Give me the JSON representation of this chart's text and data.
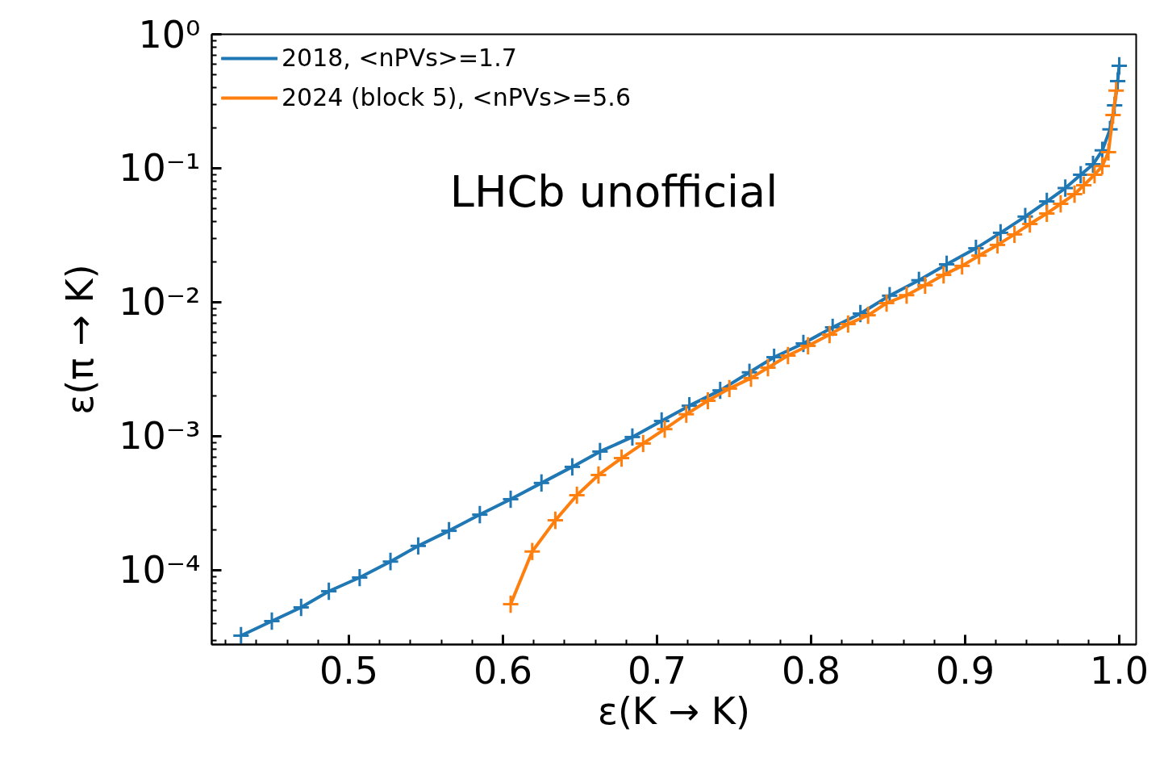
{
  "chart_data": {
    "type": "line",
    "xlabel": "ε(K → K)",
    "ylabel": "ε(π → K)",
    "annotations": [
      "LHCb unofficial"
    ],
    "log": "y",
    "grid": false,
    "legend": "top left",
    "line_style": "solid",
    "xlim": [
      0.411,
      1.011
    ],
    "xticks": [
      0.5,
      0.6,
      0.7,
      0.8,
      0.9,
      {
        "value": 1.0,
        "label": "1.0"
      }
    ],
    "ylim": [
      2.79e-05,
      1
    ],
    "yticks": [
      {
        "value": 0.0001,
        "label": "10⁻⁴"
      },
      {
        "value": 0.001,
        "label": "10⁻³"
      },
      {
        "value": 0.01,
        "label": "10⁻²"
      },
      {
        "value": 0.1,
        "label": "10⁻¹"
      },
      {
        "value": 1,
        "label": "10⁰"
      }
    ],
    "series": [
      {
        "name": "2018, <nPVs>=1.7",
        "color": "#1f77b4",
        "x": [
          0.43,
          0.45,
          0.469,
          0.487,
          0.507,
          0.527,
          0.545,
          0.565,
          0.585,
          0.605,
          0.625,
          0.645,
          0.663,
          0.684,
          0.703,
          0.721,
          0.741,
          0.76,
          0.776,
          0.795,
          0.814,
          0.832,
          0.851,
          0.87,
          0.888,
          0.907,
          0.923,
          0.939,
          0.953,
          0.965,
          0.975,
          0.983,
          0.989,
          0.994,
          0.997,
          0.999,
          1.0
        ],
        "values": [
          3.25e-05,
          4.17e-05,
          5.28e-05,
          6.97e-05,
          8.82e-05,
          0.000116,
          0.000152,
          0.000197,
          0.00026,
          0.000339,
          0.000448,
          0.000591,
          0.000769,
          0.000987,
          0.0013,
          0.00169,
          0.0022,
          0.003,
          0.00389,
          0.00493,
          0.0065,
          0.00824,
          0.0112,
          0.0146,
          0.0192,
          0.0253,
          0.033,
          0.0436,
          0.0566,
          0.0711,
          0.0895,
          0.107,
          0.136,
          0.195,
          0.295,
          0.447,
          0.582
        ],
        "xerrors": [
          0.005,
          0.005,
          0.005,
          0.005,
          0.005,
          0.005,
          0.005,
          0.005,
          0.005,
          0.005,
          0.005,
          0.005,
          0.005,
          0.005,
          0.005,
          0.005,
          0.005,
          0.005,
          0.005,
          0.005,
          0.005,
          0.005,
          0.005,
          0.005,
          0.005,
          0.005,
          0.005,
          0.005,
          0.005,
          0.005,
          0.005,
          0.005,
          0.005,
          0.005,
          0.005,
          0.005,
          0.005
        ],
        "errors": [
          [
            2.8e-05,
            3.77e-05
          ],
          [
            3.59e-05,
            4.84e-05
          ],
          [
            4.55e-05,
            6.12e-05
          ],
          [
            6.01e-05,
            8.09e-05
          ],
          [
            7.6e-05,
            0.000102
          ],
          [
            0.0001,
            0.000135
          ],
          [
            0.000131,
            0.000176
          ],
          [
            0.00017,
            0.000229
          ],
          [
            0.000224,
            0.000302
          ],
          [
            0.000292,
            0.000393
          ],
          [
            0.000386,
            0.00052
          ],
          [
            0.000509,
            0.000686
          ],
          [
            0.000663,
            0.000892
          ],
          [
            0.000851,
            0.001145
          ],
          [
            0.00112,
            0.00151
          ],
          [
            0.00146,
            0.00196
          ],
          [
            0.0019,
            0.00255
          ],
          [
            0.00259,
            0.00348
          ],
          [
            0.00335,
            0.00451
          ],
          [
            0.00425,
            0.00572
          ],
          [
            0.0056,
            0.00754
          ],
          [
            0.0071,
            0.00956
          ],
          [
            0.00966,
            0.013
          ],
          [
            0.0126,
            0.0169
          ],
          [
            0.0166,
            0.0223
          ],
          [
            0.0218,
            0.0293
          ],
          [
            0.0284,
            0.0383
          ],
          [
            0.0376,
            0.0506
          ],
          [
            0.0488,
            0.0657
          ],
          [
            0.0613,
            0.0825
          ],
          [
            0.0772,
            0.104
          ],
          [
            0.0922,
            0.124
          ],
          [
            0.117,
            0.158
          ],
          [
            0.168,
            0.226
          ],
          [
            0.254,
            0.342
          ],
          [
            0.385,
            0.519
          ],
          [
            0.502,
            0.675
          ]
        ]
      },
      {
        "name": "2024 (block 5), <nPVs>=5.6",
        "color": "#ff7f0e",
        "x": [
          0.605,
          0.619,
          0.634,
          0.648,
          0.662,
          0.677,
          0.691,
          0.705,
          0.719,
          0.733,
          0.747,
          0.761,
          0.772,
          0.785,
          0.798,
          0.812,
          0.824,
          0.837,
          0.849,
          0.862,
          0.874,
          0.886,
          0.898,
          0.909,
          0.921,
          0.932,
          0.942,
          0.953,
          0.962,
          0.971,
          0.977,
          0.984,
          0.989,
          0.993,
          0.996,
          0.998
        ],
        "values": [
          5.58e-05,
          0.000138,
          0.000236,
          0.000363,
          0.000514,
          0.000687,
          0.000883,
          0.00113,
          0.00146,
          0.00184,
          0.00227,
          0.00272,
          0.00325,
          0.004,
          0.00473,
          0.00574,
          0.00688,
          0.008,
          0.00986,
          0.0113,
          0.0134,
          0.016,
          0.0187,
          0.0223,
          0.0268,
          0.0321,
          0.0384,
          0.046,
          0.0543,
          0.0641,
          0.0747,
          0.0895,
          0.104,
          0.132,
          0.25,
          0.38
        ],
        "xerrors": [
          0.005,
          0.005,
          0.005,
          0.005,
          0.005,
          0.005,
          0.005,
          0.005,
          0.005,
          0.005,
          0.005,
          0.005,
          0.005,
          0.005,
          0.005,
          0.005,
          0.005,
          0.005,
          0.005,
          0.005,
          0.005,
          0.005,
          0.005,
          0.005,
          0.005,
          0.005,
          0.005,
          0.005,
          0.005,
          0.005,
          0.005,
          0.005,
          0.005,
          0.005,
          0.005,
          0.005
        ],
        "errors": [
          [
            4.81e-05,
            6.47e-05
          ],
          [
            0.000119,
            0.00016
          ],
          [
            0.000203,
            0.000274
          ],
          [
            0.000313,
            0.000421
          ],
          [
            0.000443,
            0.000596
          ],
          [
            0.000592,
            0.000797
          ],
          [
            0.000761,
            0.001024
          ],
          [
            0.000974,
            0.00131
          ],
          [
            0.00126,
            0.00169
          ],
          [
            0.00159,
            0.00213
          ],
          [
            0.00196,
            0.00263
          ],
          [
            0.00234,
            0.00316
          ],
          [
            0.0028,
            0.00377
          ],
          [
            0.00345,
            0.00464
          ],
          [
            0.00408,
            0.00549
          ],
          [
            0.00495,
            0.00666
          ],
          [
            0.00593,
            0.00798
          ],
          [
            0.0069,
            0.00928
          ],
          [
            0.0085,
            0.01144
          ],
          [
            0.00974,
            0.0131
          ],
          [
            0.01155,
            0.0155
          ],
          [
            0.0138,
            0.0186
          ],
          [
            0.0161,
            0.0217
          ],
          [
            0.0192,
            0.0259
          ],
          [
            0.0231,
            0.0311
          ],
          [
            0.0277,
            0.0372
          ],
          [
            0.0331,
            0.0445
          ],
          [
            0.0397,
            0.0534
          ],
          [
            0.0468,
            0.063
          ],
          [
            0.0553,
            0.0744
          ],
          [
            0.0644,
            0.0867
          ],
          [
            0.0772,
            0.104
          ],
          [
            0.0897,
            0.121
          ],
          [
            0.114,
            0.153
          ],
          [
            0.215,
            0.29
          ],
          [
            0.327,
            0.441
          ]
        ]
      }
    ]
  }
}
